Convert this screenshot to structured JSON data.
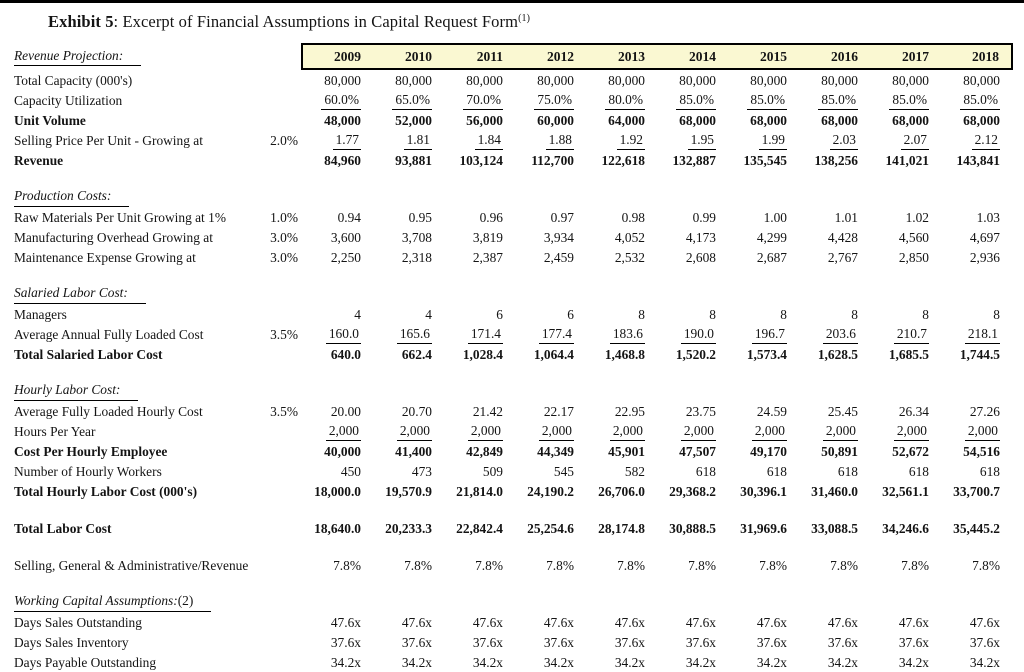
{
  "page": {
    "title_bold": "Exhibit 5",
    "title_rest": ": Excerpt of Financial Assumptions in Capital Request Form",
    "title_footnote": "(1)",
    "accent_color": "#faf8d2",
    "rule_color": "#000000"
  },
  "table": {
    "header_label": "Revenue Projection:",
    "years": [
      "2009",
      "2010",
      "2011",
      "2012",
      "2013",
      "2014",
      "2015",
      "2016",
      "2017",
      "2018"
    ],
    "sections": [
      {
        "heading": "",
        "rows": [
          {
            "label": "Total Capacity (000's)",
            "rate": "",
            "style": "plain",
            "values": [
              "80,000",
              "80,000",
              "80,000",
              "80,000",
              "80,000",
              "80,000",
              "80,000",
              "80,000",
              "80,000",
              "80,000"
            ]
          },
          {
            "label": "Capacity Utilization",
            "rate": "",
            "style": "underline",
            "values": [
              "60.0%",
              "65.0%",
              "70.0%",
              "75.0%",
              "80.0%",
              "85.0%",
              "85.0%",
              "85.0%",
              "85.0%",
              "85.0%"
            ]
          },
          {
            "label": "Unit Volume",
            "rate": "",
            "style": "bold",
            "values": [
              "48,000",
              "52,000",
              "56,000",
              "60,000",
              "64,000",
              "68,000",
              "68,000",
              "68,000",
              "68,000",
              "68,000"
            ]
          },
          {
            "label": "Selling Price Per Unit - Growing at",
            "rate": "2.0%",
            "style": "underline",
            "values": [
              "1.77",
              "1.81",
              "1.84",
              "1.88",
              "1.92",
              "1.95",
              "1.99",
              "2.03",
              "2.07",
              "2.12"
            ]
          },
          {
            "label": "Revenue",
            "rate": "",
            "style": "bold",
            "values": [
              "84,960",
              "93,881",
              "103,124",
              "112,700",
              "122,618",
              "132,887",
              "135,545",
              "138,256",
              "141,021",
              "143,841"
            ]
          }
        ]
      },
      {
        "heading": "Production Costs:",
        "rows": [
          {
            "label": "Raw Materials Per Unit Growing at 1%",
            "rate": "1.0%",
            "style": "plain",
            "values": [
              "0.94",
              "0.95",
              "0.96",
              "0.97",
              "0.98",
              "0.99",
              "1.00",
              "1.01",
              "1.02",
              "1.03"
            ]
          },
          {
            "label": "Manufacturing Overhead Growing at",
            "rate": "3.0%",
            "style": "plain",
            "values": [
              "3,600",
              "3,708",
              "3,819",
              "3,934",
              "4,052",
              "4,173",
              "4,299",
              "4,428",
              "4,560",
              "4,697"
            ]
          },
          {
            "label": "Maintenance Expense Growing at",
            "rate": "3.0%",
            "style": "plain",
            "values": [
              "2,250",
              "2,318",
              "2,387",
              "2,459",
              "2,532",
              "2,608",
              "2,687",
              "2,767",
              "2,850",
              "2,936"
            ]
          }
        ]
      },
      {
        "heading": "Salaried Labor Cost:",
        "rows": [
          {
            "label": "Managers",
            "rate": "",
            "style": "plain",
            "values": [
              "4",
              "4",
              "6",
              "6",
              "8",
              "8",
              "8",
              "8",
              "8",
              "8"
            ]
          },
          {
            "label": "Average Annual Fully Loaded Cost",
            "rate": "3.5%",
            "style": "underline",
            "values": [
              "160.0",
              "165.6",
              "171.4",
              "177.4",
              "183.6",
              "190.0",
              "196.7",
              "203.6",
              "210.7",
              "218.1"
            ]
          },
          {
            "label": "Total Salaried Labor Cost",
            "rate": "",
            "style": "bold",
            "values": [
              "640.0",
              "662.4",
              "1,028.4",
              "1,064.4",
              "1,468.8",
              "1,520.2",
              "1,573.4",
              "1,628.5",
              "1,685.5",
              "1,744.5"
            ]
          }
        ]
      },
      {
        "heading": "Hourly Labor Cost:",
        "rows": [
          {
            "label": "Average Fully Loaded Hourly Cost",
            "rate": "3.5%",
            "style": "plain",
            "values": [
              "20.00",
              "20.70",
              "21.42",
              "22.17",
              "22.95",
              "23.75",
              "24.59",
              "25.45",
              "26.34",
              "27.26"
            ]
          },
          {
            "label": "Hours Per Year",
            "rate": "",
            "style": "underline",
            "values": [
              "2,000",
              "2,000",
              "2,000",
              "2,000",
              "2,000",
              "2,000",
              "2,000",
              "2,000",
              "2,000",
              "2,000"
            ]
          },
          {
            "label": "Cost Per Hourly Employee",
            "rate": "",
            "style": "bold",
            "values": [
              "40,000",
              "41,400",
              "42,849",
              "44,349",
              "45,901",
              "47,507",
              "49,170",
              "50,891",
              "52,672",
              "54,516"
            ]
          },
          {
            "label": "Number of Hourly Workers",
            "rate": "",
            "style": "plain",
            "values": [
              "450",
              "473",
              "509",
              "545",
              "582",
              "618",
              "618",
              "618",
              "618",
              "618"
            ]
          },
          {
            "label": "Total Hourly Labor Cost (000's)",
            "rate": "",
            "style": "bold",
            "values": [
              "18,000.0",
              "19,570.9",
              "21,814.0",
              "24,190.2",
              "26,706.0",
              "29,368.2",
              "30,396.1",
              "31,460.0",
              "32,561.1",
              "33,700.7"
            ]
          }
        ]
      },
      {
        "heading": "",
        "rows": [
          {
            "label": "Total Labor Cost",
            "rate": "",
            "style": "bold",
            "values": [
              "18,640.0",
              "20,233.3",
              "22,842.4",
              "25,254.6",
              "28,174.8",
              "30,888.5",
              "31,969.6",
              "33,088.5",
              "34,246.6",
              "35,445.2"
            ]
          }
        ]
      },
      {
        "heading": "",
        "rows": [
          {
            "label": "Selling, General & Administrative/Revenue",
            "rate": "",
            "style": "plain",
            "values": [
              "7.8%",
              "7.8%",
              "7.8%",
              "7.8%",
              "7.8%",
              "7.8%",
              "7.8%",
              "7.8%",
              "7.8%",
              "7.8%"
            ]
          }
        ]
      },
      {
        "heading": "Working Capital Assumptions:",
        "heading_suffix": "(2)",
        "rows": [
          {
            "label": "Days Sales Outstanding",
            "rate": "",
            "style": "plain",
            "values": [
              "47.6x",
              "47.6x",
              "47.6x",
              "47.6x",
              "47.6x",
              "47.6x",
              "47.6x",
              "47.6x",
              "47.6x",
              "47.6x"
            ]
          },
          {
            "label": "Days Sales Inventory",
            "rate": "",
            "style": "plain",
            "values": [
              "37.6x",
              "37.6x",
              "37.6x",
              "37.6x",
              "37.6x",
              "37.6x",
              "37.6x",
              "37.6x",
              "37.6x",
              "37.6x"
            ]
          },
          {
            "label": "Days Payable Outstanding",
            "rate": "",
            "style": "plain",
            "values": [
              "34.2x",
              "34.2x",
              "34.2x",
              "34.2x",
              "34.2x",
              "34.2x",
              "34.2x",
              "34.2x",
              "34.2x",
              "34.2x"
            ]
          }
        ]
      }
    ]
  }
}
